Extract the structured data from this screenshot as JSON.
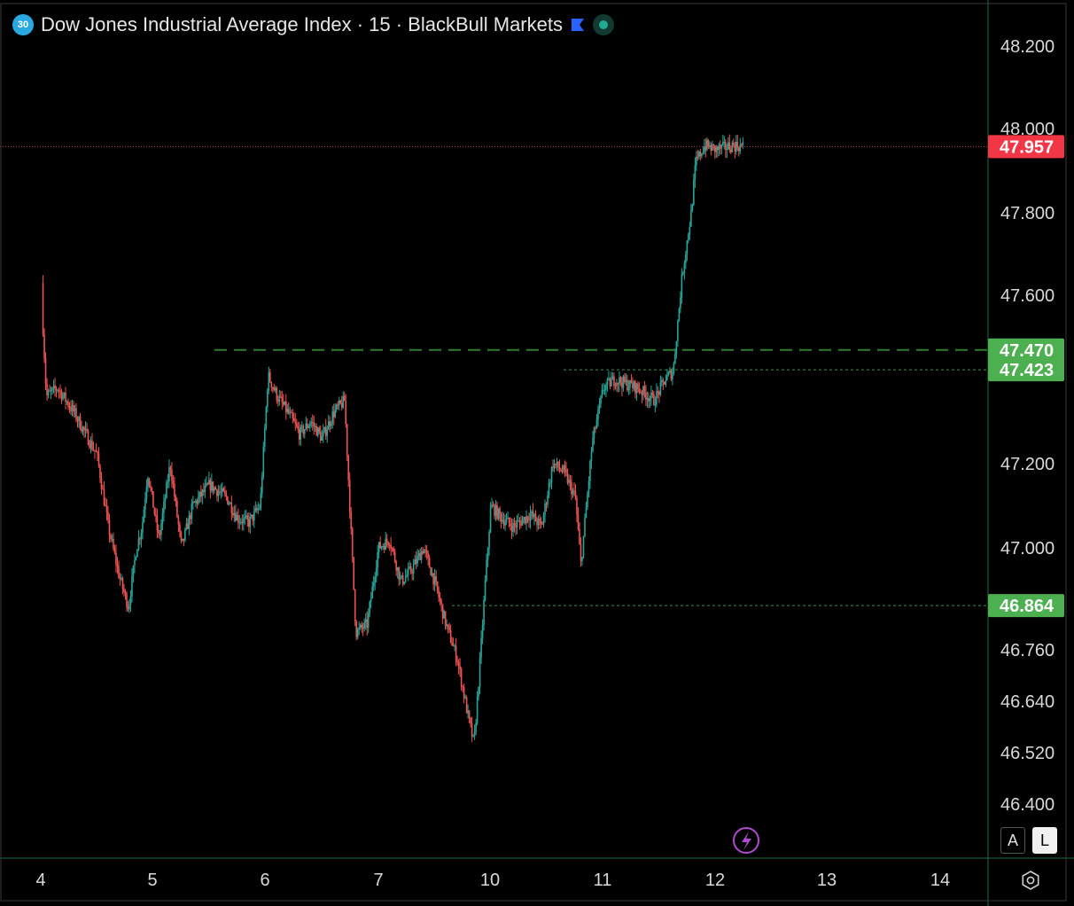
{
  "header": {
    "badge": "30",
    "title": "Dow Jones Industrial Average Index · 15 · BlackBull Markets",
    "flag_color": "#2962ff",
    "status_color": "#22ab94"
  },
  "controls": {
    "auto_label": "A",
    "log_label": "L"
  },
  "colors": {
    "background": "#000000",
    "up": "#26a69a",
    "down": "#ef5350",
    "level_line": "#2e7d32",
    "current_tag": "#f23645",
    "level_tag": "#4caf50",
    "axis_border": "#1f6b3a"
  },
  "chart_data": {
    "type": "candlestick",
    "interval": "15",
    "symbol": "Dow Jones Industrial Average Index",
    "broker": "BlackBull Markets",
    "x_ticks": [
      "4",
      "5",
      "6",
      "7",
      "10",
      "11",
      "12",
      "13",
      "14"
    ],
    "y_ticks": [
      "48.200",
      "48.000",
      "47.800",
      "47.600",
      "47.200",
      "47.000",
      "46.760",
      "46.640",
      "46.520",
      "46.400"
    ],
    "path_points": [
      [
        0,
        47.63
      ],
      [
        0.05,
        47.36
      ],
      [
        0.15,
        47.38
      ],
      [
        0.3,
        47.32
      ],
      [
        0.5,
        47.22
      ],
      [
        0.6,
        47.05
      ],
      [
        0.7,
        46.93
      ],
      [
        0.78,
        46.86
      ],
      [
        0.85,
        47.0
      ],
      [
        0.9,
        47.05
      ],
      [
        0.95,
        47.18
      ],
      [
        1.05,
        47.02
      ],
      [
        1.15,
        47.2
      ],
      [
        1.25,
        47.0
      ],
      [
        1.35,
        47.1
      ],
      [
        1.5,
        47.15
      ],
      [
        1.65,
        47.12
      ],
      [
        1.75,
        47.07
      ],
      [
        1.85,
        47.06
      ],
      [
        1.95,
        47.1
      ],
      [
        2.02,
        47.41
      ],
      [
        2.1,
        47.36
      ],
      [
        2.2,
        47.32
      ],
      [
        2.3,
        47.27
      ],
      [
        2.4,
        47.3
      ],
      [
        2.5,
        47.26
      ],
      [
        2.6,
        47.32
      ],
      [
        2.7,
        47.35
      ],
      [
        2.8,
        46.8
      ],
      [
        2.9,
        46.82
      ],
      [
        3.0,
        47.0
      ],
      [
        3.1,
        47.02
      ],
      [
        3.2,
        46.92
      ],
      [
        3.3,
        46.95
      ],
      [
        3.4,
        47.0
      ],
      [
        3.5,
        46.92
      ],
      [
        3.6,
        46.82
      ],
      [
        3.7,
        46.74
      ],
      [
        3.8,
        46.6
      ],
      [
        3.85,
        46.54
      ],
      [
        3.9,
        46.72
      ],
      [
        3.95,
        46.92
      ],
      [
        4.0,
        47.1
      ],
      [
        4.1,
        47.07
      ],
      [
        4.2,
        47.05
      ],
      [
        4.35,
        47.08
      ],
      [
        4.45,
        47.05
      ],
      [
        4.55,
        47.2
      ],
      [
        4.65,
        47.18
      ],
      [
        4.75,
        47.12
      ],
      [
        4.8,
        46.96
      ],
      [
        4.9,
        47.25
      ],
      [
        5.0,
        47.38
      ],
      [
        5.1,
        47.4
      ],
      [
        5.3,
        47.38
      ],
      [
        5.45,
        47.35
      ],
      [
        5.55,
        47.4
      ],
      [
        5.62,
        47.42
      ],
      [
        5.7,
        47.65
      ],
      [
        5.78,
        47.8
      ],
      [
        5.82,
        47.92
      ],
      [
        5.9,
        47.96
      ],
      [
        6.0,
        47.95
      ],
      [
        6.15,
        47.96
      ],
      [
        6.25,
        47.957
      ]
    ],
    "horizontal_levels": [
      {
        "price": 47.957,
        "label": "47.957",
        "style": "dotted",
        "kind": "current"
      },
      {
        "price": 47.47,
        "label": "47.470",
        "style": "dashed",
        "kind": "level"
      },
      {
        "price": 47.423,
        "label": "47.423",
        "style": "dotted",
        "kind": "level"
      },
      {
        "price": 46.864,
        "label": "46.864",
        "style": "dotted",
        "kind": "level"
      }
    ],
    "last_price": 47.957,
    "y_scale": "nonlinear",
    "grid": false
  }
}
